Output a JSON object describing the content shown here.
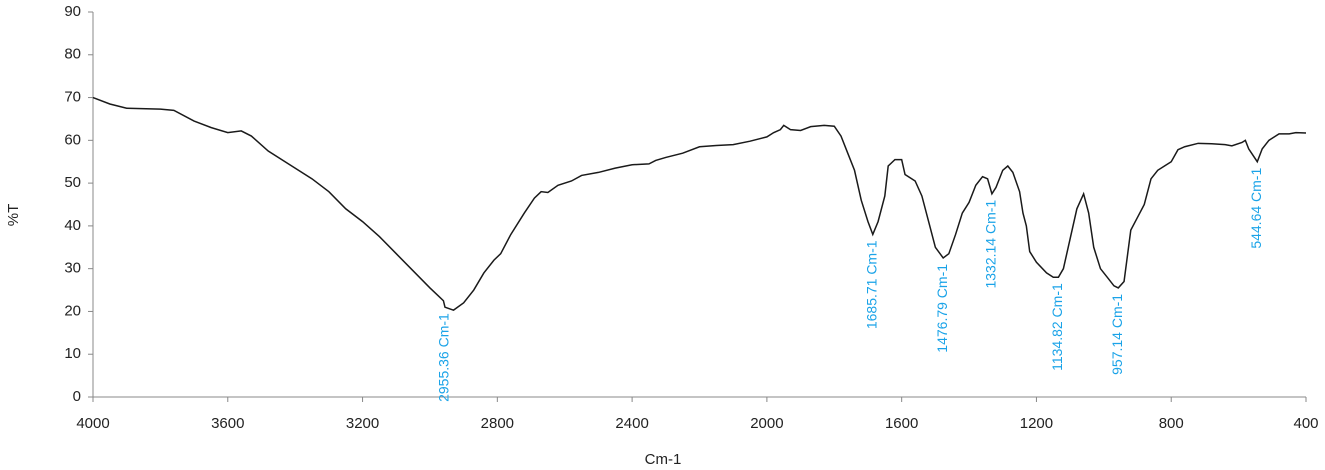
{
  "chart_data": {
    "type": "line",
    "x_label": "Cm-1",
    "y_label": "%T",
    "x": [
      4000,
      3950,
      3900,
      3800,
      3760,
      3700,
      3650,
      3600,
      3560,
      3530,
      3480,
      3420,
      3350,
      3300,
      3250,
      3200,
      3150,
      3100,
      3050,
      3000,
      2980,
      2960,
      2955.36,
      2930,
      2900,
      2870,
      2840,
      2810,
      2790,
      2760,
      2720,
      2690,
      2670,
      2650,
      2620,
      2580,
      2550,
      2500,
      2450,
      2400,
      2350,
      2330,
      2300,
      2250,
      2200,
      2150,
      2100,
      2050,
      2000,
      1980,
      1960,
      1950,
      1930,
      1900,
      1870,
      1830,
      1800,
      1780,
      1760,
      1740,
      1720,
      1700,
      1685.71,
      1670,
      1650,
      1640,
      1620,
      1600,
      1590,
      1560,
      1540,
      1520,
      1500,
      1476.79,
      1460,
      1440,
      1420,
      1400,
      1380,
      1360,
      1345,
      1332.14,
      1320,
      1300,
      1285,
      1270,
      1250,
      1240,
      1230,
      1220,
      1200,
      1170,
      1150,
      1134.82,
      1120,
      1100,
      1080,
      1060,
      1045,
      1030,
      1010,
      990,
      970,
      957.14,
      940,
      920,
      900,
      880,
      860,
      840,
      820,
      800,
      780,
      760,
      720,
      680,
      640,
      620,
      590,
      580,
      570,
      544.64,
      530,
      510,
      480,
      450,
      430,
      400
    ],
    "series": [
      {
        "color": "#1a1a1a",
        "values": [
          70,
          68.5,
          67.5,
          67.3,
          67,
          64.5,
          63,
          61.8,
          62.2,
          61,
          57.5,
          54.5,
          51,
          48,
          44,
          41,
          37.5,
          33.5,
          29.5,
          25.5,
          24,
          22.5,
          21,
          20.3,
          22,
          25,
          29,
          32,
          33.5,
          38,
          43,
          46.5,
          48,
          47.8,
          49.5,
          50.5,
          51.8,
          52.5,
          53.5,
          54.3,
          54.5,
          55.3,
          56,
          57,
          58.5,
          58.8,
          59,
          59.8,
          60.8,
          61.8,
          62.5,
          63.5,
          62.5,
          62.3,
          63.2,
          63.5,
          63.3,
          61,
          57,
          53,
          46,
          41,
          38,
          41,
          47,
          54,
          55.5,
          55.5,
          52,
          50.5,
          47,
          41,
          35,
          32.5,
          33.5,
          38,
          43,
          45.5,
          49.5,
          51.5,
          51,
          47.5,
          49,
          53,
          54,
          52.5,
          48,
          43,
          40,
          34,
          31.5,
          29,
          28,
          28,
          30,
          37,
          44,
          47.5,
          43,
          35,
          30,
          28,
          26,
          25.5,
          27,
          39,
          42,
          45,
          51,
          53,
          54,
          55,
          57.8,
          58.5,
          59.3,
          59.2,
          59,
          58.7,
          59.5,
          60,
          58,
          55,
          58,
          60,
          61.5,
          61.5,
          61.8,
          61.7
        ]
      }
    ],
    "xlim": [
      4000,
      400
    ],
    "xticks": [
      4000,
      3600,
      3200,
      2800,
      2400,
      2000,
      1600,
      1200,
      800,
      400
    ],
    "ylim": [
      0,
      90
    ],
    "yticks": [
      0,
      10,
      20,
      30,
      40,
      50,
      60,
      70,
      80,
      90
    ],
    "annotations": [
      {
        "text": "2955.36 Cm-1",
        "x": 2955.36
      },
      {
        "text": "1685.71 Cm-1",
        "x": 1685.71
      },
      {
        "text": "1476.79 Cm-1",
        "x": 1476.79
      },
      {
        "text": "1332.14 Cm-1",
        "x": 1332.14
      },
      {
        "text": "1134.82 Cm-1",
        "x": 1134.82
      },
      {
        "text": "957.14 Cm-1",
        "x": 957.14
      },
      {
        "text": "544.64 Cm-1",
        "x": 544.64
      }
    ],
    "annotation_color": "#1aa3e8"
  }
}
